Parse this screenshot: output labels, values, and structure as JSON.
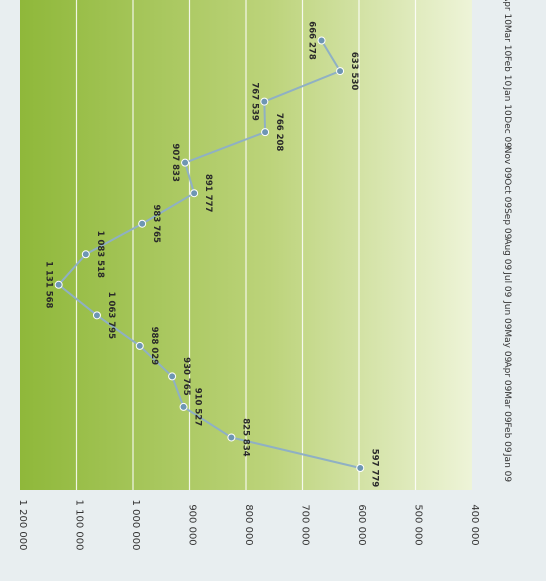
{
  "chart_data": {
    "type": "line",
    "orientation": "rotated-90-clockwise",
    "categories": [
      "Jan 09",
      "Feb 09",
      "Mar 09",
      "Apr 09",
      "May 09",
      "Jun 09",
      "Jul 09",
      "Aug 09",
      "Sep 09",
      "Oct 09",
      "Nov 09",
      "Dec 09",
      "Jan 10",
      "Feb 10",
      "Mar 10",
      "Apr 10"
    ],
    "series": [
      {
        "values": [
          597779,
          825834,
          910527,
          930765,
          988029,
          1063795,
          1131568,
          1083518,
          983765,
          891777,
          907833,
          766208,
          767539,
          633530,
          666278,
          null
        ],
        "labels": [
          "597 779",
          "825 834",
          "910 527",
          "930 765",
          "988 029",
          "1 063 795",
          "1 131 568",
          "1 083 518",
          "983 765",
          "891 777",
          "907 833",
          "766 208",
          "767 539",
          "633 530",
          "666 278",
          ""
        ]
      }
    ],
    "yticks": [
      "400 000",
      "500 000",
      "600 000",
      "700 000",
      "800 000",
      "900 000",
      "1 000 000",
      "1 100 000",
      "1 200 000"
    ],
    "ylim": [
      400000,
      1200000
    ],
    "grid": true,
    "colors": {
      "line": "#8fb0c4",
      "marker": "#6e96b3",
      "band_dark": "#8fb83a",
      "band_light": "#eef4d8",
      "gridline": "#ffffff",
      "text": "#333333"
    }
  }
}
